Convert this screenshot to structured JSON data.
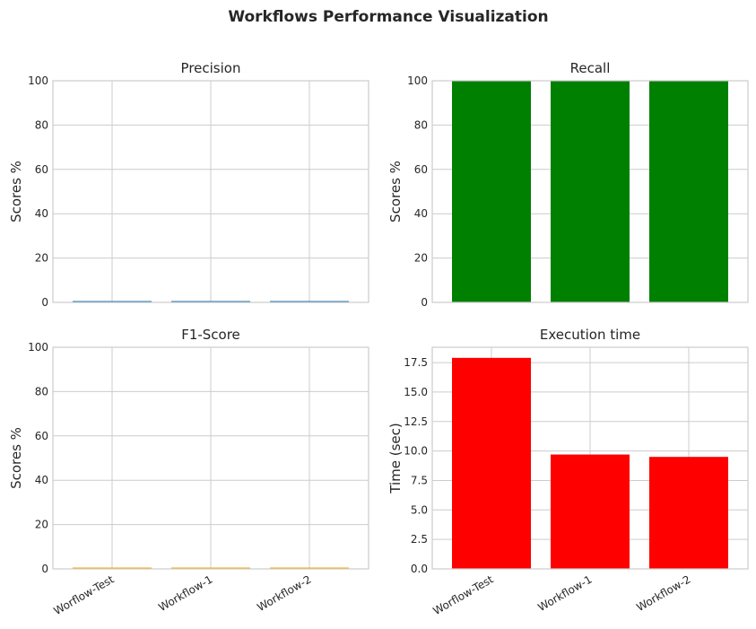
{
  "title": "Workflows Performance Visualization",
  "chart_data": [
    {
      "type": "bar",
      "title": "Precision",
      "ylabel": "Scores %",
      "categories": [
        "Worflow-Test",
        "Workflow-1",
        "Workflow-2"
      ],
      "values": [
        0,
        0,
        0
      ],
      "ylim": [
        0,
        100
      ],
      "yticks": [
        "0",
        "20",
        "40",
        "60",
        "80",
        "100"
      ],
      "color": "#1f77b4",
      "show_xticks": false,
      "grid": true
    },
    {
      "type": "bar",
      "title": "Recall",
      "ylabel": "Scores %",
      "categories": [
        "Worflow-Test",
        "Workflow-1",
        "Workflow-2"
      ],
      "values": [
        100,
        100,
        100
      ],
      "ylim": [
        0,
        100
      ],
      "yticks": [
        "0",
        "20",
        "40",
        "60",
        "80",
        "100"
      ],
      "color": "#008000",
      "show_xticks": false,
      "grid": true
    },
    {
      "type": "bar",
      "title": "F1-Score",
      "ylabel": "Scores %",
      "categories": [
        "Worflow-Test",
        "Workflow-1",
        "Workflow-2"
      ],
      "values": [
        0,
        0,
        0
      ],
      "ylim": [
        0,
        100
      ],
      "yticks": [
        "0",
        "20",
        "40",
        "60",
        "80",
        "100"
      ],
      "color": "#ffa500",
      "show_xticks": true,
      "grid": true
    },
    {
      "type": "bar",
      "title": "Execution time",
      "ylabel": "Time (sec)",
      "categories": [
        "Worflow-Test",
        "Workflow-1",
        "Workflow-2"
      ],
      "values": [
        17.9,
        9.7,
        9.5
      ],
      "ylim": [
        0,
        18.8
      ],
      "yticks": [
        "0.0",
        "2.5",
        "5.0",
        "7.5",
        "10.0",
        "12.5",
        "15.0",
        "17.5"
      ],
      "color": "#ff0000",
      "show_xticks": true,
      "grid": true
    }
  ]
}
